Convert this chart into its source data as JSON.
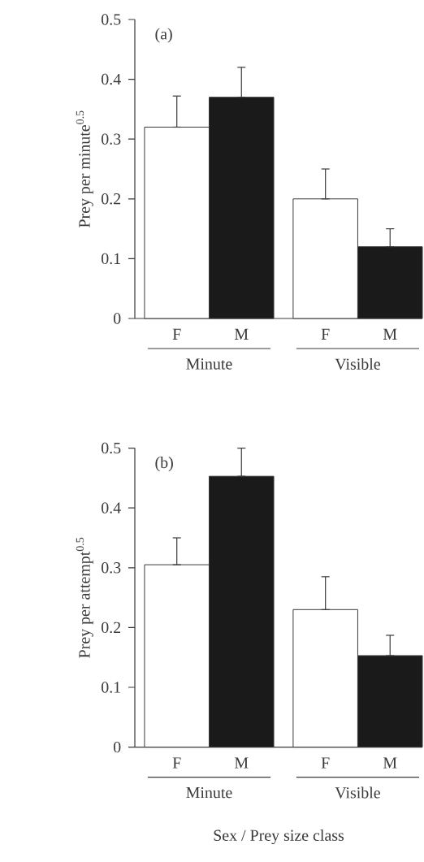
{
  "chart_data": [
    {
      "type": "bar",
      "title": "(a)",
      "ylabel": "Prey per minute$^{0.5}$",
      "categories": [
        "F",
        "M",
        "F",
        "M"
      ],
      "values": [
        0.32,
        0.37,
        0.2,
        0.12
      ],
      "colors": [
        "#ffffff",
        "#1a1a1a",
        "#ffffff",
        "#1a1a1a"
      ],
      "errors": [
        [
          0.32,
          0.372
        ],
        [
          0.37,
          0.42
        ],
        [
          0.2,
          0.25
        ],
        [
          0.12,
          0.15
        ]
      ],
      "ylim": [
        0,
        0.5
      ],
      "yticks": [
        0,
        0.1,
        0.2,
        0.3,
        0.4,
        0.5
      ],
      "annotations": [
        "Minute",
        "Visible"
      ]
    },
    {
      "type": "bar",
      "title": "(b)",
      "ylabel": "Prey per attempt$^{0.5}$",
      "xlabel": "Sex / Prey size class",
      "categories": [
        "F",
        "M",
        "F",
        "M"
      ],
      "values": [
        0.305,
        0.453,
        0.23,
        0.153
      ],
      "colors": [
        "#ffffff",
        "#1a1a1a",
        "#ffffff",
        "#1a1a1a"
      ],
      "errors": [
        [
          0.305,
          0.35
        ],
        [
          0.453,
          0.5
        ],
        [
          0.23,
          0.285
        ],
        [
          0.153,
          0.187
        ]
      ],
      "ylim": [
        0,
        0.5
      ],
      "yticks": [
        0,
        0.1,
        0.2,
        0.3,
        0.4,
        0.5
      ],
      "annotations": [
        "Minute",
        "Visible"
      ]
    }
  ]
}
